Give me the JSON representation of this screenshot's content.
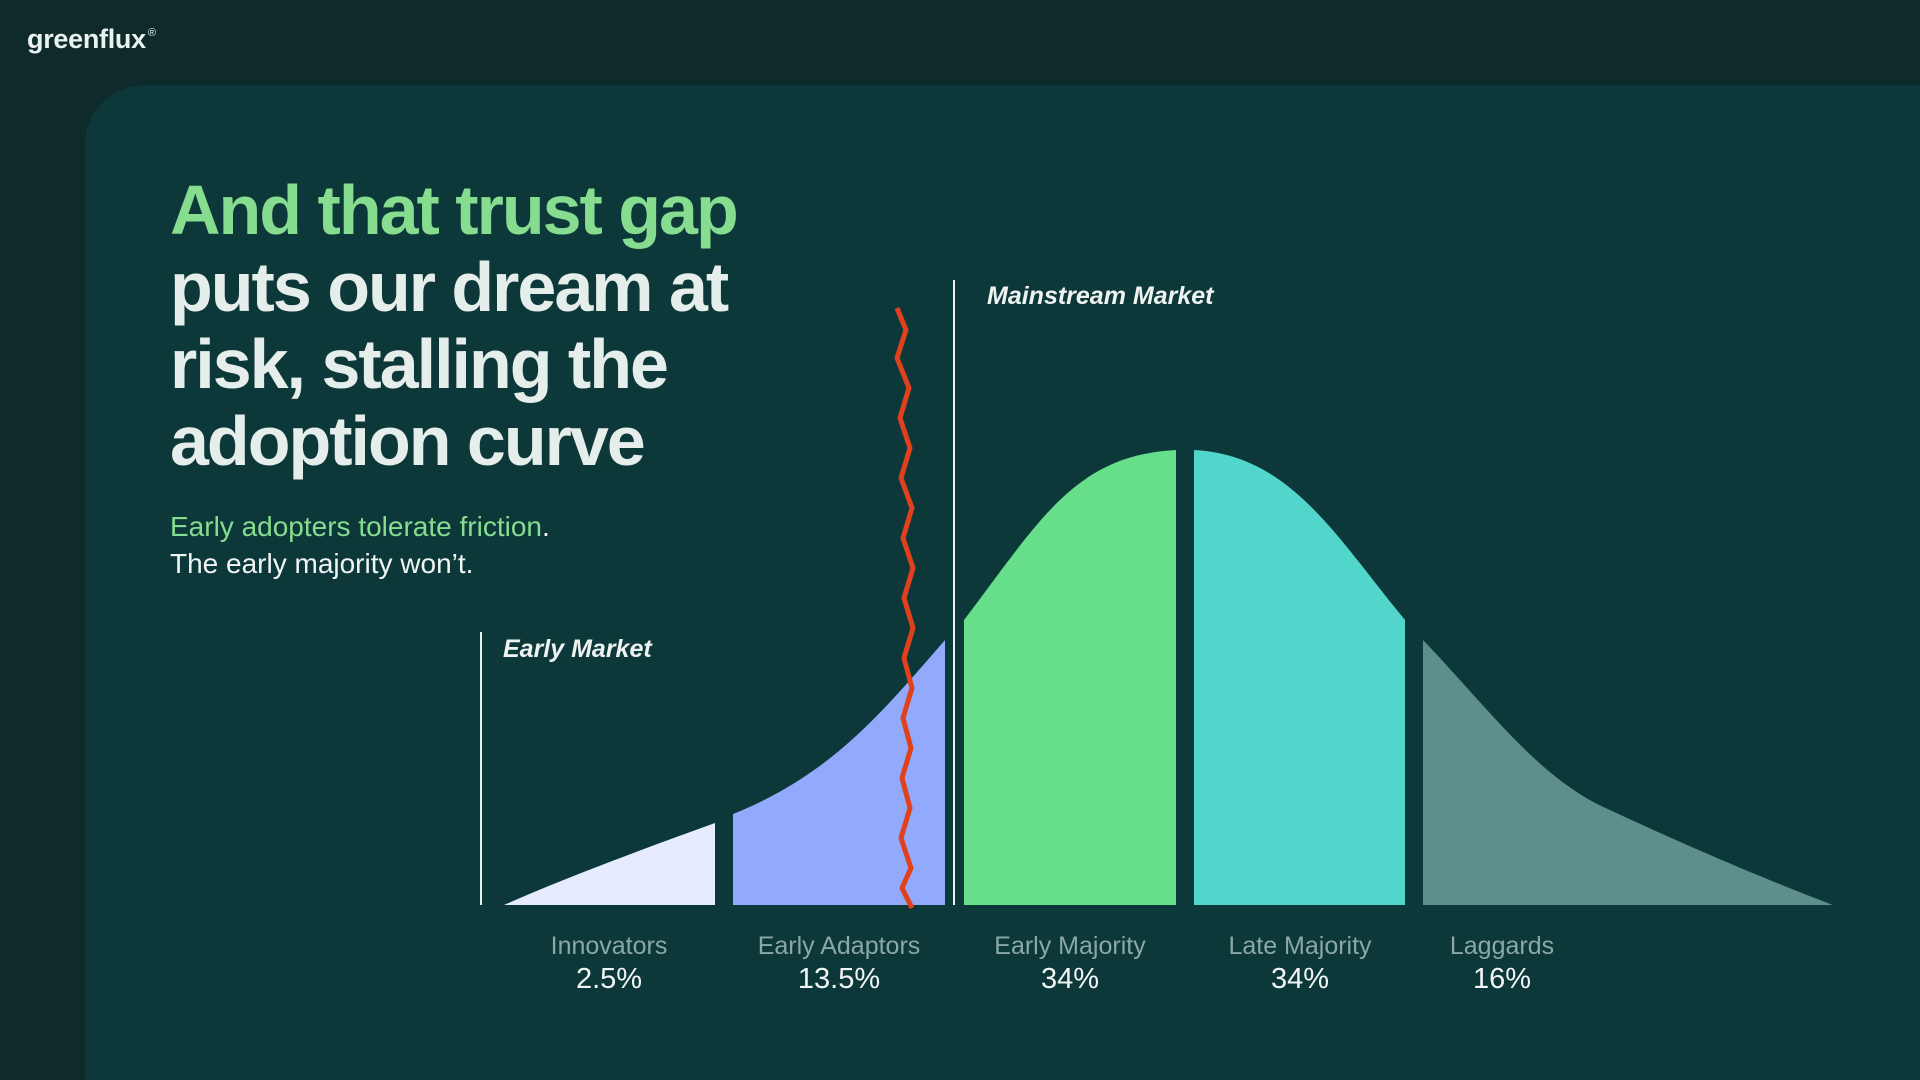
{
  "brand": {
    "name": "greenflux",
    "mark": "®"
  },
  "headline": {
    "highlight": "And that trust gap",
    "rest": "puts our dream at risk, stalling the adoption curve"
  },
  "subtext": {
    "highlight": "Early adopters tolerate friction",
    "highlight_end": ".",
    "line2": "The early majority won’t."
  },
  "markets": {
    "early": "Early Market",
    "mainstream": "Mainstream Market"
  },
  "segments": [
    {
      "label": "Innovators",
      "value": "2.5%",
      "color": "#e6ebff"
    },
    {
      "label": "Early Adaptors",
      "value": "13.5%",
      "color": "#93a9fb"
    },
    {
      "label": "Early Majority",
      "value": "34%",
      "color": "#66de8a"
    },
    {
      "label": "Late Majority",
      "value": "34%",
      "color": "#52d6cc"
    },
    {
      "label": "Laggards",
      "value": "16%",
      "color": "#5d8f8d"
    }
  ],
  "colors": {
    "background": "#0f2a2b",
    "panel": "#0d383a",
    "accent": "#86dc8f",
    "chasm": "#e0401c"
  }
}
